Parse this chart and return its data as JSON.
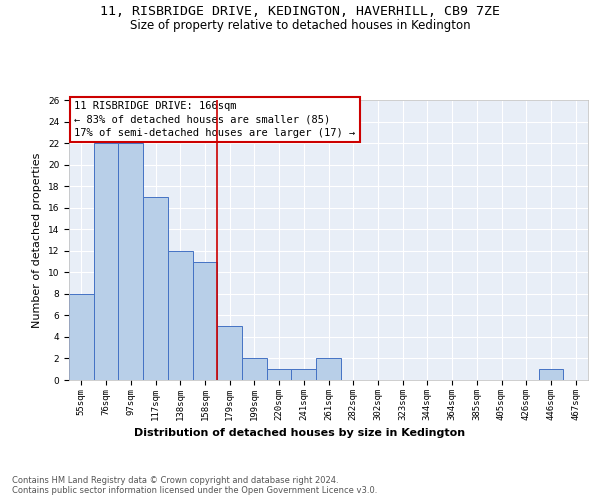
{
  "title": "11, RISBRIDGE DRIVE, KEDINGTON, HAVERHILL, CB9 7ZE",
  "subtitle": "Size of property relative to detached houses in Kedington",
  "xlabel": "Distribution of detached houses by size in Kedington",
  "ylabel": "Number of detached properties",
  "categories": [
    "55sqm",
    "76sqm",
    "97sqm",
    "117sqm",
    "138sqm",
    "158sqm",
    "179sqm",
    "199sqm",
    "220sqm",
    "241sqm",
    "261sqm",
    "282sqm",
    "302sqm",
    "323sqm",
    "344sqm",
    "364sqm",
    "385sqm",
    "405sqm",
    "426sqm",
    "446sqm",
    "467sqm"
  ],
  "values": [
    8,
    22,
    22,
    17,
    12,
    11,
    5,
    2,
    1,
    1,
    2,
    0,
    0,
    0,
    0,
    0,
    0,
    0,
    0,
    1,
    0
  ],
  "bar_color": "#b8cfe8",
  "bar_edge_color": "#4472c4",
  "vline_x": 5.5,
  "vline_color": "#cc0000",
  "annotation_text": "11 RISBRIDGE DRIVE: 166sqm\n← 83% of detached houses are smaller (85)\n17% of semi-detached houses are larger (17) →",
  "annotation_box_color": "#ffffff",
  "annotation_box_edge_color": "#cc0000",
  "ylim": [
    0,
    26
  ],
  "yticks": [
    0,
    2,
    4,
    6,
    8,
    10,
    12,
    14,
    16,
    18,
    20,
    22,
    24,
    26
  ],
  "background_color": "#e8eef7",
  "grid_color": "#ffffff",
  "footer_text": "Contains HM Land Registry data © Crown copyright and database right 2024.\nContains public sector information licensed under the Open Government Licence v3.0.",
  "title_fontsize": 9.5,
  "subtitle_fontsize": 8.5,
  "xlabel_fontsize": 8,
  "ylabel_fontsize": 8,
  "tick_fontsize": 6.5,
  "annotation_fontsize": 7.5,
  "footer_fontsize": 6
}
